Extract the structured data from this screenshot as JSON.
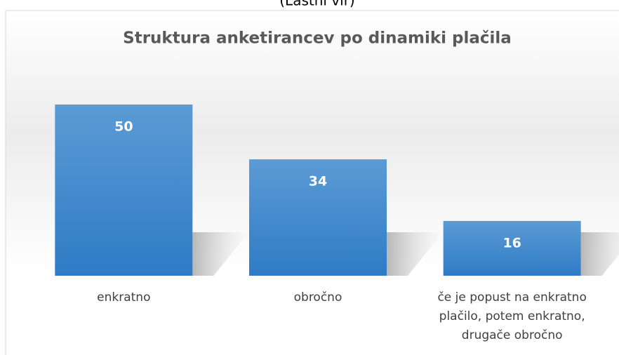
{
  "caption": "(Lastni vir)",
  "chart_data": {
    "type": "bar",
    "title": "Struktura anketirancev po dinamiki plačila",
    "categories": [
      "enkratno",
      "obročno",
      "če je popust na enkratno plačilo, potem enkratno, drugače obročno"
    ],
    "values": [
      50,
      34,
      16
    ],
    "color": "#4a8fd4"
  }
}
